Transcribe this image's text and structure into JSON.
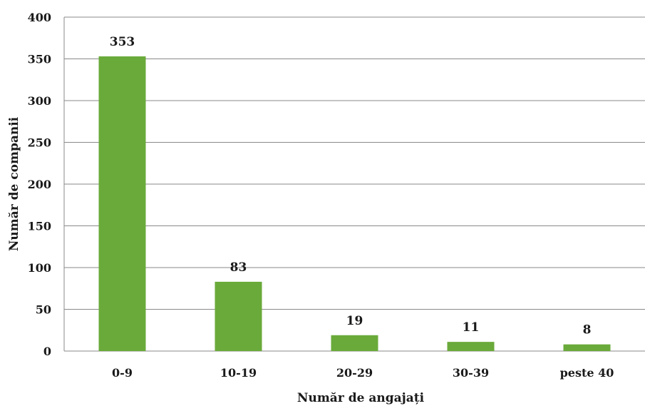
{
  "chart_data": {
    "type": "bar",
    "categories": [
      "0-9",
      "10-19",
      "20-29",
      "30-39",
      "peste 40"
    ],
    "values": [
      353,
      83,
      19,
      11,
      8
    ],
    "data_labels": [
      "353",
      "83",
      "19",
      "11",
      "8"
    ],
    "xlabel": "Număr de angajați",
    "ylabel": "Număr de companii",
    "ylim": [
      0,
      400
    ],
    "yticks": [
      0,
      50,
      100,
      150,
      200,
      250,
      300,
      350,
      400
    ],
    "grid": true,
    "legend": "none",
    "bar_color": "#6aaa3a"
  }
}
